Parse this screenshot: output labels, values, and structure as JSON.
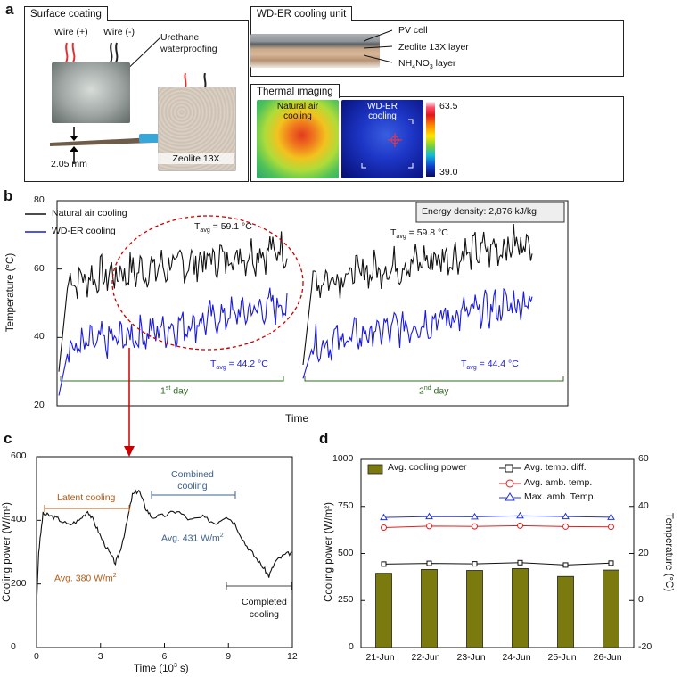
{
  "panel_labels": {
    "a": "a",
    "b": "b",
    "c": "c",
    "d": "d"
  },
  "panel_a": {
    "surface_coating": {
      "title": "Surface coating",
      "wire_pos": "Wire (+)",
      "wire_neg": "Wire (-)",
      "urethane_1": "Urethane",
      "urethane_2": "waterproofing",
      "thickness": "2.05 mm",
      "zeolite": "Zeolite 13X"
    },
    "cooling_unit": {
      "title": "WD-ER cooling unit",
      "pv": "PV cell",
      "zeolite_layer": "Zeolite 13X layer",
      "nh4_prefix": "NH",
      "nh4_sub": "4",
      "nh4_mid": "NO",
      "nh4_sub2": "3",
      "nh4_suffix": " layer"
    },
    "thermal": {
      "title": "Thermal imaging",
      "natural_1": "Natural air",
      "natural_2": "cooling",
      "wder_1": "WD-ER",
      "wder_2": "cooling",
      "max": "63.5",
      "min": "39.0"
    }
  },
  "panel_b": {
    "legend_natural": "Natural air cooling",
    "legend_wder": "WD-ER cooling",
    "energy": "Energy density: 2,876 kJ/kg",
    "tavg1_black": "59.1 °C",
    "tavg2_black": "59.8 °C",
    "tavg1_blue": "44.2 °C",
    "tavg2_blue": "44.4 °C",
    "tavg_T": "T",
    "tavg_sub": "avg",
    "eq": " = ",
    "day1_num": "1",
    "day1_sup": "st",
    "day1_txt": " day",
    "day2_num": "2",
    "day2_sup": "nd",
    "day2_txt": " day",
    "xlabel": "Time",
    "ylabel": "Temperature (°C)",
    "yticks": [
      "20",
      "40",
      "60",
      "80"
    ]
  },
  "panel_c": {
    "latent": "Latent cooling",
    "combined_1": "Combined",
    "combined_2": "cooling",
    "avg431": "Avg. 431 W/m",
    "avg380": "Avg. 380 W/m",
    "sup2": "2",
    "completed_1": "Completed",
    "completed_2": "cooling",
    "xlabel": "Time (10",
    "xlabel_sup": "3",
    "xlabel_end": " s)",
    "ylabel": "Cooling power (W/m²)",
    "yticks": [
      "0",
      "200",
      "400",
      "600"
    ],
    "xticks": [
      "0",
      "3",
      "6",
      "9",
      "12"
    ]
  },
  "chart_data": [
    {
      "type": "line",
      "id": "panel_b",
      "title": "",
      "xlabel": "Time",
      "ylabel": "Temperature (°C)",
      "ylim": [
        20,
        80
      ],
      "series": [
        {
          "name": "Natural air cooling",
          "color": "#111111",
          "day1_avg": 59.1,
          "day2_avg": 59.8
        },
        {
          "name": "WD-ER cooling",
          "color": "#1a1adb",
          "day1_avg": 44.2,
          "day2_avg": 44.4
        }
      ],
      "annotation": "Energy density: 2,876 kJ/kg"
    },
    {
      "type": "line",
      "id": "panel_c",
      "xlabel": "Time (10^3 s)",
      "ylabel": "Cooling power (W/m²)",
      "xlim": [
        0,
        12
      ],
      "ylim": [
        0,
        600
      ],
      "x": [
        0,
        0.1,
        0.3,
        0.6,
        1.0,
        1.5,
        2.0,
        2.4,
        2.7,
        3.0,
        3.4,
        3.7,
        3.9,
        4.2,
        4.5,
        4.8,
        5.1,
        5.4,
        6.0,
        6.6,
        7.2,
        7.8,
        8.4,
        8.9,
        9.3,
        9.8,
        10.2,
        10.6,
        10.9,
        11.2,
        11.6,
        12.0
      ],
      "values": [
        130,
        300,
        420,
        415,
        405,
        385,
        400,
        430,
        395,
        350,
        300,
        265,
        300,
        380,
        480,
        495,
        440,
        410,
        415,
        430,
        400,
        410,
        390,
        415,
        390,
        325,
        290,
        255,
        225,
        270,
        290,
        300
      ],
      "annotations": {
        "latent_avg": "Avg. 380 W/m2",
        "combined_avg": "Avg. 431 W/m2"
      }
    },
    {
      "type": "bar",
      "id": "panel_d",
      "categories": [
        "21-Jun",
        "22-Jun",
        "23-Jun",
        "24-Jun",
        "25-Jun",
        "26-Jun"
      ],
      "ylabel": "Cooling power (W/m²)",
      "y2label": "Temperature (°C)",
      "ylim": [
        0,
        1000
      ],
      "y2lim": [
        -20,
        60
      ],
      "yticks": [
        "0",
        "250",
        "500",
        "750",
        "1000"
      ],
      "y2ticks": [
        "-20",
        "0",
        "20",
        "40",
        "60"
      ],
      "series": [
        {
          "name": "Avg. cooling power",
          "kind": "bar",
          "axis": "left",
          "color": "#7a7a0e",
          "values": [
            395,
            415,
            410,
            420,
            378,
            412
          ]
        },
        {
          "name": "Avg. temp. diff.",
          "kind": "line",
          "axis": "right",
          "color": "#111111",
          "values": [
            15.5,
            15.8,
            15.6,
            16.1,
            15.1,
            15.9
          ]
        },
        {
          "name": "Avg. amb. temp.",
          "kind": "line",
          "axis": "right",
          "color": "#e02020",
          "values": [
            31.0,
            31.6,
            31.5,
            31.8,
            31.4,
            31.3
          ]
        },
        {
          "name": "Max. amb. Temp.",
          "kind": "line",
          "axis": "right",
          "color": "#2233dd",
          "values": [
            35.3,
            35.7,
            35.6,
            36.0,
            35.7,
            35.4
          ]
        }
      ]
    }
  ]
}
